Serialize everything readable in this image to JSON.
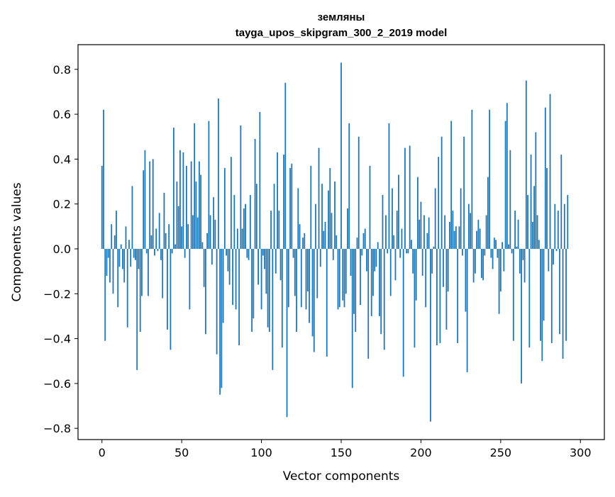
{
  "chart_data": {
    "type": "bar",
    "title": "земляны",
    "subtitle": "tayga_upos_skipgram_300_2_2019 model",
    "xlabel": "Vector components",
    "ylabel": "Components values",
    "xlim": [
      -15,
      315
    ],
    "ylim": [
      -0.85,
      0.91
    ],
    "xticks": [
      0,
      50,
      100,
      150,
      200,
      250,
      300
    ],
    "yticks": [
      -0.8,
      -0.6,
      -0.4,
      -0.2,
      0.0,
      0.2,
      0.4,
      0.6,
      0.8
    ],
    "xtick_labels": [
      "0",
      "50",
      "100",
      "150",
      "200",
      "250",
      "300"
    ],
    "ytick_labels": [
      "−0.8",
      "−0.6",
      "−0.4",
      "−0.2",
      "0.0",
      "0.2",
      "0.4",
      "0.6",
      "0.8"
    ],
    "grid": false,
    "legend": false,
    "bar_color": "#1f77b4",
    "series": [
      {
        "values": [
          0.37,
          0.62,
          -0.41,
          -0.12,
          -0.04,
          -0.15,
          0.11,
          -0.2,
          0.06,
          0.17,
          -0.26,
          -0.08,
          0.02,
          -0.09,
          -0.15,
          0.1,
          -0.35,
          0.04,
          -0.08,
          0.28,
          -0.04,
          -0.05,
          -0.54,
          -0.09,
          -0.37,
          -0.21,
          0.35,
          0.44,
          -0.02,
          -0.21,
          0.39,
          0.06,
          0.4,
          -0.03,
          0.09,
          -0.01,
          0.16,
          -0.05,
          -0.22,
          0.25,
          0.07,
          -0.36,
          0.11,
          -0.45,
          -0.02,
          0.54,
          0.02,
          0.3,
          0.19,
          0.44,
          0.1,
          0.43,
          -0.04,
          0.37,
          0.11,
          -0.27,
          0.39,
          0.15,
          0.56,
          0.3,
          0.14,
          0.39,
          0.33,
          0.03,
          -0.17,
          -0.38,
          0.07,
          0.57,
          0.15,
          -0.07,
          0.23,
          0.13,
          -0.47,
          0.67,
          -0.65,
          -0.62,
          -0.33,
          0.36,
          -0.03,
          -0.1,
          -0.16,
          0.41,
          -0.25,
          0.24,
          -0.27,
          0.09,
          -0.43,
          0.55,
          0.09,
          0.18,
          0.2,
          -0.04,
          -0.05,
          0.24,
          -0.37,
          -0.31,
          0.49,
          0.29,
          -0.16,
          0.61,
          -0.27,
          -0.03,
          -0.09,
          -0.2,
          -0.35,
          -0.37,
          0.17,
          -0.54,
          0.29,
          -0.11,
          0.43,
          0.17,
          -0.14,
          -0.44,
          0.42,
          0.74,
          -0.75,
          -0.26,
          0.36,
          0.38,
          -0.04,
          -0.21,
          -0.37,
          0.27,
          0.11,
          -0.26,
          0.05,
          0.07,
          -0.27,
          -0.19,
          -0.33,
          0.37,
          -0.39,
          -0.46,
          0.2,
          -0.22,
          0.45,
          -0.08,
          0.29,
          0.08,
          0.12,
          -0.48,
          0.26,
          0.36,
          0.16,
          -0.05,
          0.3,
          0.06,
          -0.27,
          -0.26,
          0.83,
          -0.23,
          -0.26,
          -0.2,
          0.18,
          0.56,
          -0.12,
          -0.62,
          -0.29,
          -0.37,
          0.05,
          0.5,
          -0.25,
          -0.03,
          0.07,
          0.09,
          -0.1,
          -0.49,
          0.37,
          -0.3,
          -0.21,
          -0.1,
          -0.08,
          0.03,
          -0.3,
          -0.38,
          0.24,
          -0.45,
          0.15,
          -0.02,
          0.56,
          -0.21,
          0.27,
          0.06,
          -0.14,
          0.17,
          0.33,
          -0.04,
          0.09,
          -0.57,
          0.45,
          -0.02,
          -0.02,
          0.46,
          0.04,
          -0.11,
          -0.44,
          -0.23,
          0.32,
          0.13,
          0.21,
          -0.12,
          0.15,
          -0.26,
          0.07,
          0.14,
          -0.77,
          -0.11,
          0.01,
          0.27,
          -0.43,
          0.41,
          -0.42,
          0.5,
          -0.17,
          0.15,
          -0.36,
          -0.19,
          0.12,
          0.57,
          0.17,
          0.08,
          0.1,
          -0.42,
          0.1,
          0.27,
          -0.03,
          0.5,
          -0.28,
          -0.55,
          0.2,
          0.16,
          0.62,
          -0.15,
          -0.11,
          0.08,
          0.13,
          0.09,
          -0.13,
          -0.14,
          -0.03,
          0.15,
          0.32,
          0.62,
          -0.04,
          -0.09,
          0.05,
          0.04,
          -0.04,
          -0.29,
          -0.19,
          0.03,
          -0.1,
          0.57,
          0.65,
          0.02,
          0.44,
          -0.02,
          -0.41,
          0.17,
          0.01,
          0.13,
          -0.11,
          -0.6,
          -0.05,
          -0.15,
          0.75,
          0.24,
          -0.44,
          0.42,
          0.12,
          0.28,
          0.52,
          0.15,
          0.04,
          -0.41,
          -0.5,
          -0.32,
          0.63,
          0.36,
          -0.1,
          0.69,
          -0.42,
          -0.07,
          0.2,
          -0.01,
          0.17,
          -0.38,
          0.42,
          -0.49,
          0.2,
          -0.41,
          0.24
        ]
      }
    ]
  }
}
